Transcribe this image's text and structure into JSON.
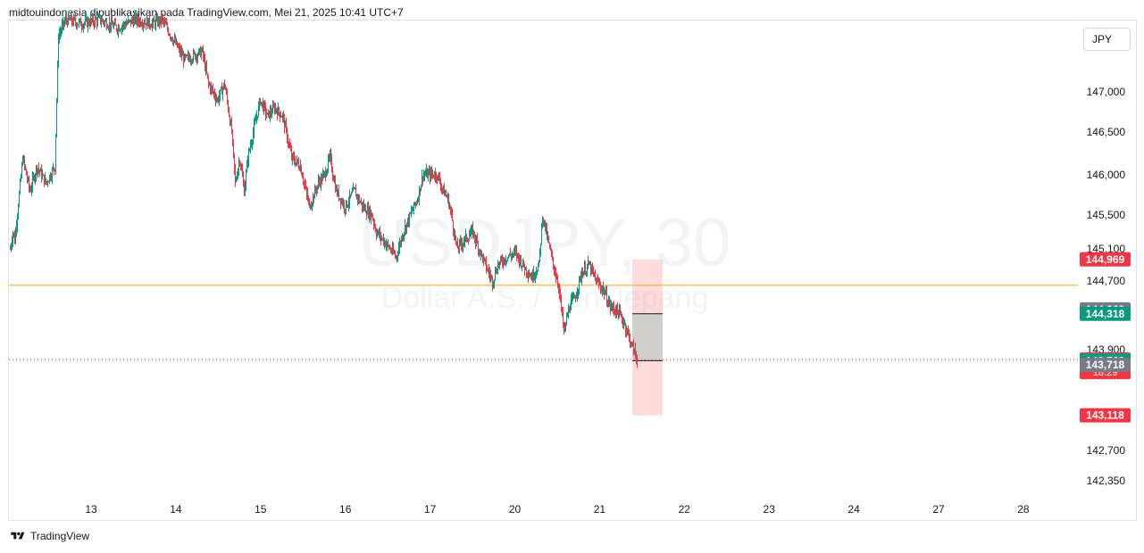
{
  "header": {
    "attribution": "midtouindonesia dipublikasikan pada TradingView.com, Mei 21, 2025 10:41 UTC+7"
  },
  "footer": {
    "brand": "TradingView"
  },
  "price_scale": {
    "currency": "JPY"
  },
  "colors": {
    "up": "#089981",
    "down": "#f23645",
    "orange_line": "#f7a21b",
    "neutral_tag": "#787b86",
    "watermark": "#eef0f3"
  },
  "chart_data": {
    "type": "candlestick",
    "symbol_watermark": "USDJPY, 30",
    "description_watermark": "Dollar A.S. / Yen Jepang",
    "y_ticks": [
      "147,000",
      "146,500",
      "146,000",
      "145,500",
      "145,100",
      "144,700",
      "143,900",
      "142,700",
      "142,350"
    ],
    "x_ticks": [
      "13",
      "14",
      "15",
      "16",
      "17",
      "20",
      "21",
      "22",
      "23",
      "24",
      "27",
      "28"
    ],
    "horizontal_line": 144.65,
    "current_price": 143.782,
    "position": {
      "stop": 144.969,
      "entry": 143.769,
      "target": 143.118,
      "upper_marker": 144.318
    },
    "price_tags": [
      {
        "label": "144,969",
        "value": 144.969,
        "color": "#f23645"
      },
      {
        "label": "144,369",
        "value": 144.369,
        "color": "#787b86"
      },
      {
        "label": "144,318",
        "value": 144.318,
        "color": "#089981"
      },
      {
        "label": "143,782",
        "sub": "18:29",
        "value": 143.782,
        "color": "#f23645"
      },
      {
        "label": "143,769",
        "value": 143.769,
        "color": "#089981"
      },
      {
        "label": "143,718",
        "value": 143.718,
        "color": "#787b86"
      },
      {
        "label": "143,118",
        "value": 143.118,
        "color": "#f23645"
      }
    ],
    "series_path": [
      [
        0,
        145.1
      ],
      [
        3,
        145.3
      ],
      [
        5,
        145.2
      ],
      [
        14,
        146.2
      ],
      [
        22,
        145.8
      ],
      [
        30,
        146.1
      ],
      [
        40,
        145.9
      ],
      [
        50,
        146.1
      ],
      [
        54,
        147.7
      ],
      [
        62,
        147.9
      ],
      [
        80,
        147.85
      ],
      [
        100,
        147.9
      ],
      [
        120,
        147.8
      ],
      [
        140,
        147.9
      ],
      [
        160,
        147.85
      ],
      [
        170,
        147.9
      ],
      [
        180,
        147.7
      ],
      [
        195,
        147.4
      ],
      [
        215,
        147.5
      ],
      [
        222,
        147.1
      ],
      [
        232,
        146.9
      ],
      [
        240,
        147.1
      ],
      [
        248,
        146.5
      ],
      [
        252,
        145.9
      ],
      [
        257,
        146.2
      ],
      [
        262,
        145.8
      ],
      [
        266,
        146.2
      ],
      [
        272,
        146.5
      ],
      [
        280,
        146.9
      ],
      [
        288,
        146.7
      ],
      [
        296,
        146.8
      ],
      [
        305,
        146.7
      ],
      [
        315,
        146.2
      ],
      [
        325,
        146.1
      ],
      [
        335,
        145.6
      ],
      [
        345,
        145.9
      ],
      [
        352,
        146.0
      ],
      [
        358,
        146.2
      ],
      [
        365,
        145.8
      ],
      [
        375,
        145.6
      ],
      [
        385,
        145.8
      ],
      [
        395,
        145.6
      ],
      [
        405,
        145.5
      ],
      [
        410,
        145.3
      ],
      [
        418,
        145.2
      ],
      [
        425,
        145.1
      ],
      [
        432,
        145.0
      ],
      [
        440,
        145.3
      ],
      [
        448,
        145.5
      ],
      [
        456,
        145.7
      ],
      [
        462,
        146.0
      ],
      [
        470,
        146.0
      ],
      [
        478,
        146.0
      ],
      [
        485,
        145.8
      ],
      [
        490,
        145.7
      ],
      [
        494,
        145.5
      ],
      [
        500,
        145.1
      ],
      [
        508,
        145.2
      ],
      [
        518,
        145.3
      ],
      [
        525,
        145.1
      ],
      [
        532,
        144.9
      ],
      [
        540,
        144.7
      ],
      [
        546,
        144.9
      ],
      [
        556,
        145.0
      ],
      [
        566,
        145.05
      ],
      [
        574,
        144.9
      ],
      [
        584,
        144.75
      ],
      [
        592,
        144.9
      ],
      [
        596,
        145.5
      ],
      [
        602,
        145.2
      ],
      [
        608,
        144.9
      ],
      [
        614,
        144.65
      ],
      [
        620,
        144.1
      ],
      [
        626,
        144.4
      ],
      [
        632,
        144.5
      ],
      [
        640,
        144.8
      ],
      [
        648,
        144.9
      ],
      [
        656,
        144.7
      ],
      [
        664,
        144.6
      ],
      [
        672,
        144.4
      ],
      [
        680,
        144.35
      ],
      [
        688,
        144.2
      ],
      [
        696,
        143.95
      ],
      [
        702,
        143.78
      ]
    ]
  }
}
